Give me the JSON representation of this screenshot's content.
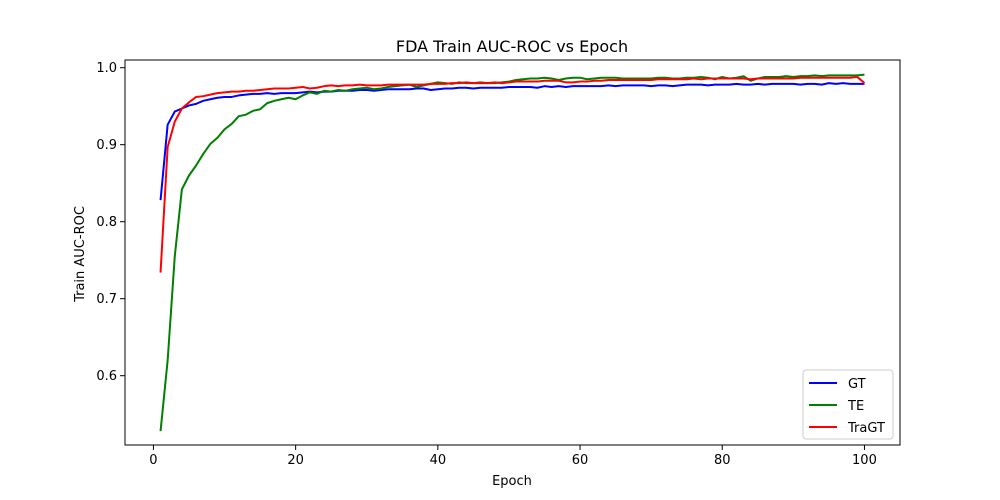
{
  "chart_data": {
    "type": "line",
    "title": "FDA Train AUC-ROC vs Epoch",
    "xlabel": "Epoch",
    "ylabel": "Train AUC-ROC",
    "xlim": [
      -4,
      105
    ],
    "ylim": [
      0.51,
      1.01
    ],
    "xticks": [
      0,
      20,
      40,
      60,
      80,
      100
    ],
    "yticks": [
      0.6,
      0.7,
      0.8,
      0.9,
      1.0
    ],
    "xtick_labels": [
      "0",
      "20",
      "40",
      "60",
      "80",
      "100"
    ],
    "ytick_labels": [
      "0.6",
      "0.7",
      "0.8",
      "0.9",
      "1.0"
    ],
    "grid": false,
    "legend_position": "bottom-right",
    "x": [
      1,
      2,
      3,
      4,
      5,
      6,
      7,
      8,
      9,
      10,
      11,
      12,
      13,
      14,
      15,
      16,
      17,
      18,
      19,
      20,
      21,
      22,
      23,
      24,
      25,
      26,
      27,
      28,
      29,
      30,
      31,
      32,
      33,
      34,
      35,
      36,
      37,
      38,
      39,
      40,
      41,
      42,
      43,
      44,
      45,
      46,
      47,
      48,
      49,
      50,
      51,
      52,
      53,
      54,
      55,
      56,
      57,
      58,
      59,
      60,
      61,
      62,
      63,
      64,
      65,
      66,
      67,
      68,
      69,
      70,
      71,
      72,
      73,
      74,
      75,
      76,
      77,
      78,
      79,
      80,
      81,
      82,
      83,
      84,
      85,
      86,
      87,
      88,
      89,
      90,
      91,
      92,
      93,
      94,
      95,
      96,
      97,
      98,
      99,
      100
    ],
    "series": [
      {
        "name": "GT",
        "color": "#0000ff",
        "values": [
          0.828,
          0.926,
          0.943,
          0.947,
          0.951,
          0.953,
          0.957,
          0.959,
          0.961,
          0.962,
          0.962,
          0.964,
          0.965,
          0.966,
          0.966,
          0.967,
          0.966,
          0.967,
          0.967,
          0.967,
          0.968,
          0.969,
          0.968,
          0.969,
          0.969,
          0.97,
          0.97,
          0.97,
          0.971,
          0.971,
          0.97,
          0.971,
          0.972,
          0.972,
          0.972,
          0.972,
          0.973,
          0.973,
          0.971,
          0.972,
          0.973,
          0.973,
          0.974,
          0.974,
          0.973,
          0.974,
          0.974,
          0.974,
          0.974,
          0.975,
          0.975,
          0.975,
          0.975,
          0.974,
          0.976,
          0.975,
          0.976,
          0.975,
          0.976,
          0.976,
          0.976,
          0.976,
          0.976,
          0.977,
          0.976,
          0.977,
          0.977,
          0.977,
          0.977,
          0.976,
          0.977,
          0.977,
          0.976,
          0.977,
          0.978,
          0.978,
          0.978,
          0.977,
          0.978,
          0.978,
          0.978,
          0.979,
          0.978,
          0.978,
          0.979,
          0.978,
          0.979,
          0.979,
          0.979,
          0.979,
          0.978,
          0.979,
          0.979,
          0.978,
          0.98,
          0.979,
          0.98,
          0.979,
          0.979,
          0.979
        ]
      },
      {
        "name": "TE",
        "color": "#008000",
        "values": [
          0.528,
          0.62,
          0.755,
          0.842,
          0.86,
          0.873,
          0.888,
          0.901,
          0.909,
          0.92,
          0.927,
          0.937,
          0.939,
          0.944,
          0.946,
          0.954,
          0.957,
          0.959,
          0.961,
          0.959,
          0.964,
          0.968,
          0.966,
          0.97,
          0.969,
          0.971,
          0.97,
          0.972,
          0.973,
          0.974,
          0.972,
          0.973,
          0.975,
          0.976,
          0.977,
          0.978,
          0.975,
          0.977,
          0.979,
          0.981,
          0.98,
          0.979,
          0.981,
          0.98,
          0.98,
          0.981,
          0.98,
          0.98,
          0.981,
          0.982,
          0.984,
          0.985,
          0.986,
          0.986,
          0.987,
          0.986,
          0.984,
          0.986,
          0.987,
          0.987,
          0.985,
          0.986,
          0.987,
          0.987,
          0.987,
          0.986,
          0.986,
          0.986,
          0.986,
          0.986,
          0.987,
          0.987,
          0.986,
          0.986,
          0.987,
          0.987,
          0.988,
          0.987,
          0.985,
          0.988,
          0.986,
          0.987,
          0.989,
          0.983,
          0.986,
          0.988,
          0.988,
          0.988,
          0.989,
          0.988,
          0.989,
          0.989,
          0.99,
          0.989,
          0.99,
          0.99,
          0.99,
          0.99,
          0.99,
          0.991
        ]
      },
      {
        "name": "TraGT",
        "color": "#ff0000",
        "values": [
          0.734,
          0.897,
          0.93,
          0.947,
          0.955,
          0.962,
          0.963,
          0.965,
          0.967,
          0.968,
          0.969,
          0.969,
          0.97,
          0.97,
          0.971,
          0.972,
          0.973,
          0.973,
          0.973,
          0.974,
          0.975,
          0.973,
          0.974,
          0.976,
          0.977,
          0.976,
          0.977,
          0.977,
          0.978,
          0.977,
          0.977,
          0.977,
          0.978,
          0.978,
          0.978,
          0.978,
          0.978,
          0.978,
          0.979,
          0.979,
          0.979,
          0.98,
          0.98,
          0.981,
          0.98,
          0.98,
          0.98,
          0.981,
          0.98,
          0.981,
          0.982,
          0.982,
          0.982,
          0.982,
          0.983,
          0.983,
          0.983,
          0.981,
          0.981,
          0.982,
          0.982,
          0.983,
          0.983,
          0.984,
          0.984,
          0.984,
          0.984,
          0.984,
          0.984,
          0.984,
          0.985,
          0.985,
          0.985,
          0.985,
          0.985,
          0.986,
          0.985,
          0.986,
          0.986,
          0.986,
          0.986,
          0.986,
          0.986,
          0.985,
          0.986,
          0.986,
          0.986,
          0.986,
          0.986,
          0.986,
          0.987,
          0.987,
          0.987,
          0.987,
          0.987,
          0.987,
          0.987,
          0.987,
          0.988,
          0.98
        ]
      }
    ]
  }
}
